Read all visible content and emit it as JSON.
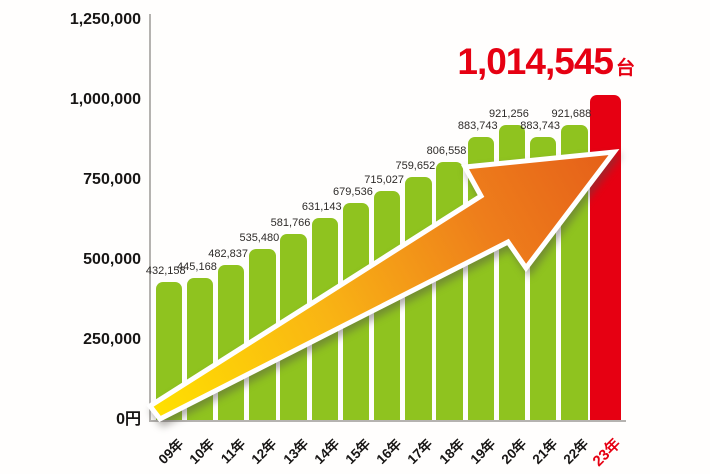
{
  "chart_data": {
    "type": "bar",
    "title": "",
    "xlabel": "",
    "ylabel": "",
    "categories": [
      "09年",
      "10年",
      "11年",
      "12年",
      "13年",
      "14年",
      "15年",
      "16年",
      "17年",
      "18年",
      "19年",
      "20年",
      "21年",
      "22年",
      "23年"
    ],
    "values": [
      432158,
      445168,
      482837,
      535480,
      581766,
      631143,
      679536,
      715027,
      759652,
      806558,
      883743,
      921256,
      883743,
      921688,
      1014545
    ],
    "bar_color": "#8fc31f",
    "highlight": {
      "index": 14,
      "color": "#e60012",
      "label": "1,014,545",
      "unit": "台"
    },
    "yticks": [
      {
        "label": "1,250,000",
        "value": 1250000
      },
      {
        "label": "1,000,000",
        "value": 1000000
      },
      {
        "label": "750,000",
        "value": 750000
      },
      {
        "label": "500,000",
        "value": 500000
      },
      {
        "label": "250,000",
        "value": 250000
      },
      {
        "label": "0円",
        "value": 0
      }
    ],
    "ylim": [
      0,
      1250000
    ],
    "grid": false,
    "legend": "none",
    "annotations": [
      {
        "text": "1,014,545台",
        "color": "#e60012",
        "position": "above last bar"
      },
      {
        "shape": "growth-arrow",
        "direction": "up-right",
        "gradient": "yellow to orange"
      }
    ]
  },
  "colors": {
    "bar_green": "#8fc31f",
    "bar_red": "#e60012",
    "accent_red": "#e60012",
    "axis_gray": "#b5b3b0",
    "value_label_dark": "#2e2b29",
    "tick_black": "#171514",
    "arrow_outline": "#ffffff",
    "arrow_gradient": [
      "#ffe100",
      "#f9b414",
      "#ee7e1b",
      "#e55f19"
    ]
  }
}
